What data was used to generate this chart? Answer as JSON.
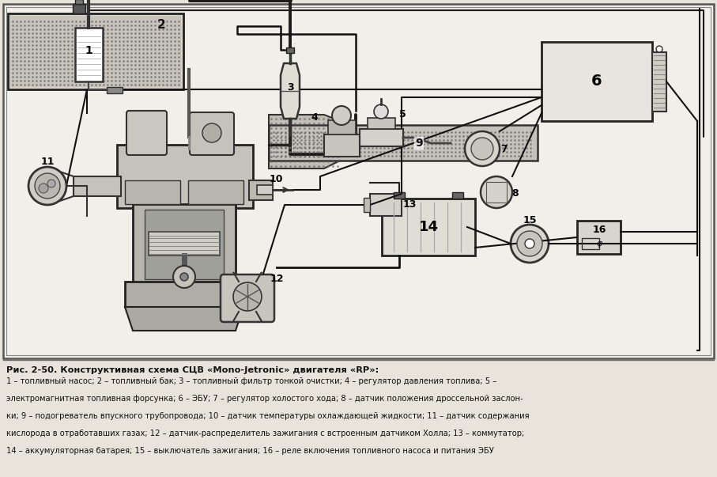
{
  "bg_color": "#e8e4dc",
  "diagram_bg": "#f5f3ee",
  "text_color": "#111111",
  "caption_title": "Рис. 2-50. Конструктивная схема СЦВ «Mono-Jetronic» двигателя «RP»:",
  "caption_lines": [
    "1 – топливный насос; 2 – топливный бак; 3 – топливный фильтр тонкой очистки; 4 – регулятор давления топлива; 5 –",
    "электромагнитная топливная форсунка; 6 – ЭБУ; 7 – регулятор холостого хода; 8 – датчик положения дроссельной заслон-",
    "ки; 9 – подогреватель впускного трубопровода; 10 – датчик температуры охлаждающей жидкости; 11 – датчик содержания",
    "кислорода в отработавших газах; 12 – датчик-распределитель зажигания с встроенным датчиком Холла; 13 – коммутатор;",
    "14 – аккумуляторная батарея; 15 – выключатель зажигания; 16 – реле включения топливного насоса и питания ЭБУ"
  ],
  "figsize": [
    9.07,
    6.03
  ],
  "dpi": 100
}
